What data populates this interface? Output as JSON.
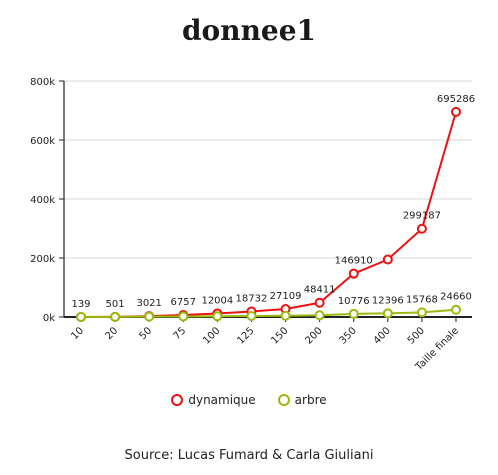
{
  "chart_data": {
    "type": "line",
    "title": "donnee1",
    "source": "Source: Lucas Fumard & Carla Giuliani",
    "categories": [
      "10",
      "20",
      "50",
      "75",
      "100",
      "125",
      "150",
      "200",
      "350",
      "400",
      "500",
      "Taille finale"
    ],
    "ylim": [
      0,
      800000
    ],
    "yticks": [
      0,
      200000,
      400000,
      600000,
      800000
    ],
    "ytick_labels": [
      "0k",
      "200k",
      "400k",
      "600k",
      "800k"
    ],
    "grid": true,
    "legend_position": "bottom",
    "series": [
      {
        "name": "dynamique",
        "color": "#ee1111",
        "values": [
          139,
          501,
          3021,
          6757,
          12004,
          18732,
          27109,
          48411,
          146910,
          195000,
          299187,
          695286
        ],
        "labels": [
          "139",
          "501",
          "3021",
          "6757",
          "12004",
          "18732",
          "27109",
          "48411",
          "146910",
          "",
          "299187",
          "695286"
        ]
      },
      {
        "name": "arbre",
        "color": "#99bb11",
        "values": [
          300,
          600,
          1200,
          1800,
          2600,
          3300,
          4200,
          6000,
          10776,
          12396,
          15768,
          24660
        ],
        "labels": [
          "",
          "",
          "",
          "",
          "",
          "",
          "",
          "",
          "10776",
          "12396",
          "15768",
          "24660"
        ]
      }
    ]
  }
}
